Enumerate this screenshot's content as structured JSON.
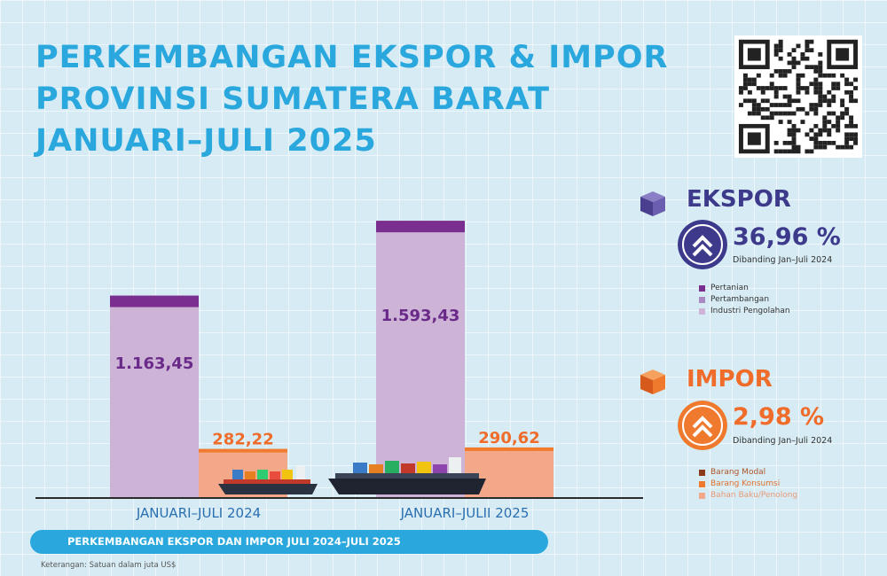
{
  "title_lines": [
    "PERKEMBANGAN EKSPOR & IMPOR",
    "PROVINSI SUMATERA BARAT",
    "JANUARI–JULI 2025"
  ],
  "colors": {
    "title": "#2aa8de",
    "pertanian": "#7a2e8f",
    "pertambangan": "#a889c4",
    "industri_pengolahan": "#cdb3d6",
    "barang_modal": "#8b3a1e",
    "barang_konsumsi": "#f07b2e",
    "bahan_baku": "#f3a88a",
    "ekspor_value": "#6a2a8a",
    "impor_value": "#ef6c2a"
  },
  "chart_data": {
    "type": "bar",
    "categories": [
      "JANUARI–JULI 2024",
      "JANUARI–JULII 2025"
    ],
    "series": [
      {
        "name": "EKSPOR",
        "values": [
          1163.45,
          1593.43
        ],
        "labels": [
          "1.163,45",
          "1.593,43"
        ]
      },
      {
        "name": "IMPOR",
        "values": [
          282.22,
          290.62
        ],
        "labels": [
          "282,22",
          "290,62"
        ]
      }
    ],
    "title": "PERKEMBANGAN EKSPOR & IMPOR PROVINSI SUMATERA BARAT JANUARI–JULI 2025",
    "xlabel": "",
    "ylabel": "",
    "ylim": [
      0,
      1640
    ],
    "grid": false,
    "legend_position": "right"
  },
  "ekspor": {
    "label": "EKSPOR",
    "change": "36,96 %",
    "compare": "Dibanding Jan–Juli 2024",
    "direction_icon": "double-chevron-up-icon",
    "legend": [
      "Pertanian",
      "Pertambangan",
      "Industri Pengolahan"
    ]
  },
  "impor": {
    "label": "IMPOR",
    "change": "2,98 %",
    "compare": "Dibanding Jan–Juli 2024",
    "direction_icon": "double-chevron-up-icon",
    "legend": [
      "Barang Modal",
      "Barang Konsumsi",
      "Bahan Baku/Penolong"
    ]
  },
  "footer": {
    "banner": "PERKEMBANGAN EKSPOR DAN IMPOR JULI 2024–JULI 2025",
    "note": "Keterangan: Satuan dalam juta US$"
  }
}
